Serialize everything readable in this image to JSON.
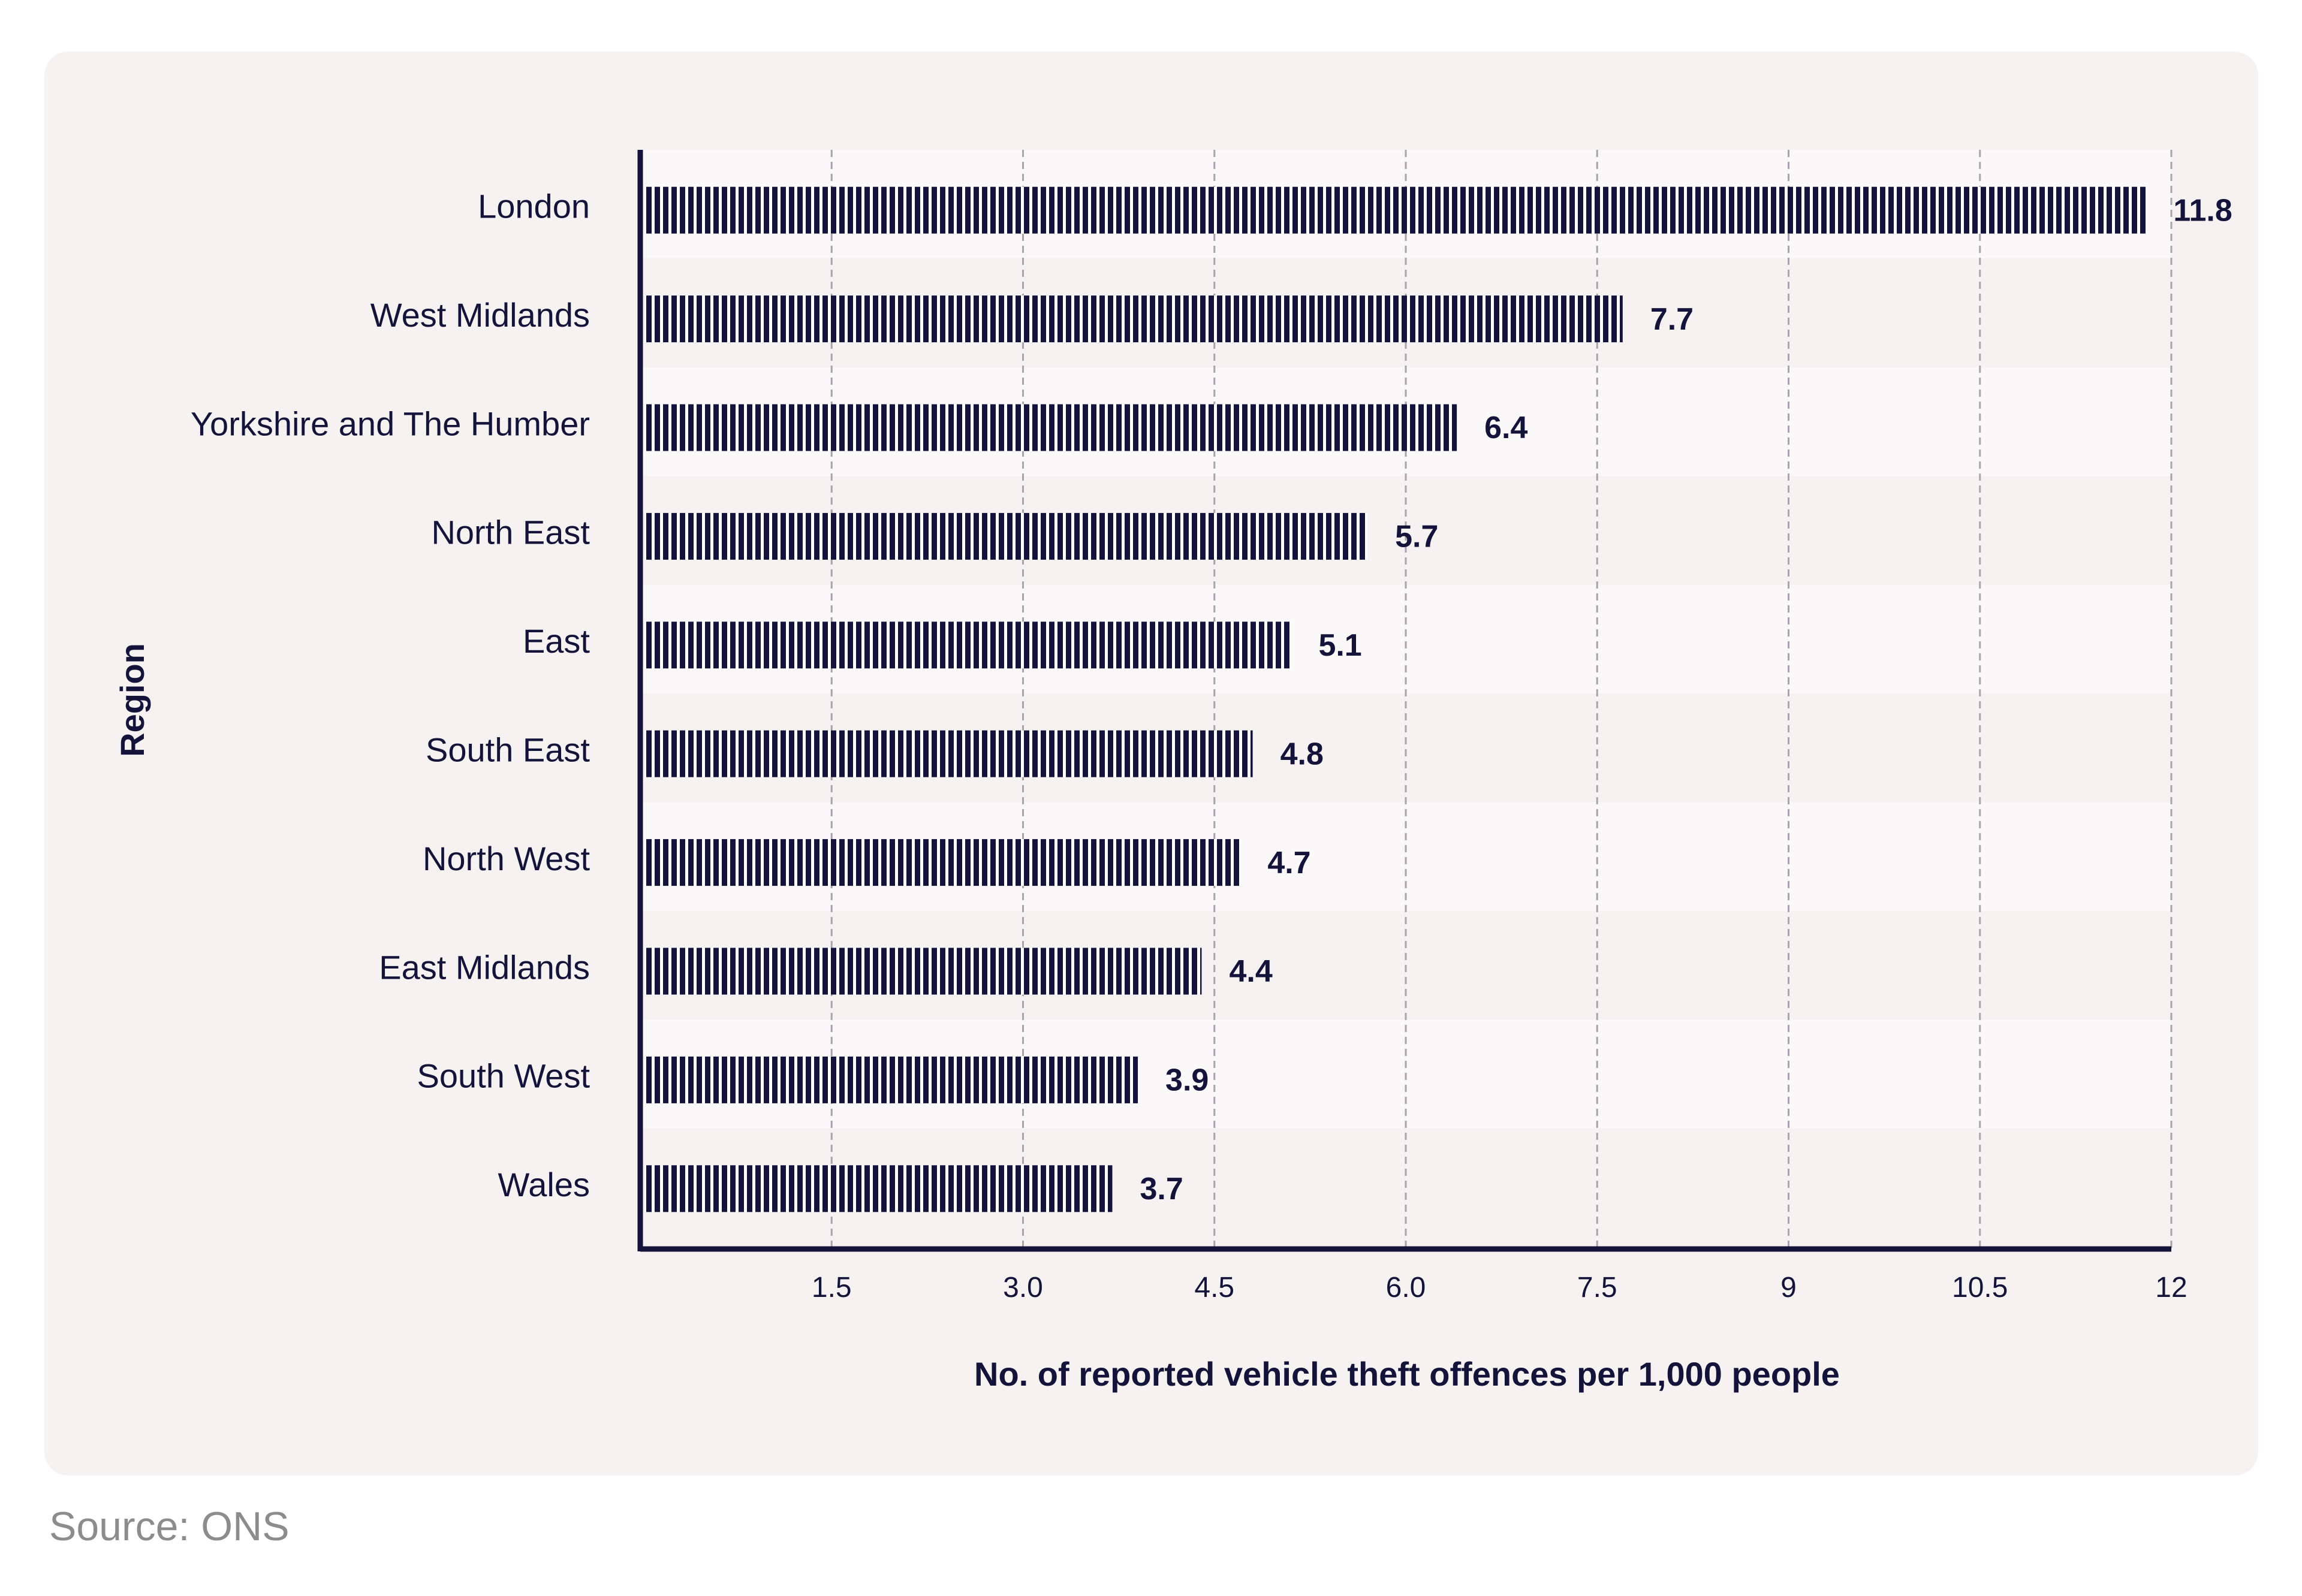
{
  "colors": {
    "card_bg": "#f5f2f1",
    "band_light": "#faf8f8",
    "band_dark": "#f5f2f1",
    "bar": "#14143a",
    "bar_gap": "#ffffff",
    "grid": "#a8a4ad",
    "text": "#14143a",
    "source_text": "#8c8c8c"
  },
  "chart_data": {
    "type": "bar",
    "orientation": "horizontal",
    "title": "",
    "xlabel": "No. of reported vehicle theft offences per 1,000 people",
    "ylabel": "Region",
    "xlim": [
      0,
      12
    ],
    "grid": true,
    "x_ticks": [
      {
        "value": 1.5,
        "label": "1.5"
      },
      {
        "value": 3.0,
        "label": "3.0"
      },
      {
        "value": 4.5,
        "label": "4.5"
      },
      {
        "value": 6.0,
        "label": "6.0"
      },
      {
        "value": 7.5,
        "label": "7.5"
      },
      {
        "value": 9,
        "label": "9"
      },
      {
        "value": 10.5,
        "label": "10.5"
      },
      {
        "value": 12,
        "label": "12"
      }
    ],
    "categories": [
      "London",
      "West Midlands",
      "Yorkshire and The Humber",
      "North East",
      "East",
      "South East",
      "North West",
      "East Midlands",
      "South West",
      "Wales"
    ],
    "values": [
      11.8,
      7.7,
      6.4,
      5.7,
      5.1,
      4.8,
      4.7,
      4.4,
      3.9,
      3.7
    ],
    "value_labels": [
      "11.8",
      "7.7",
      "6.4",
      "5.7",
      "5.1",
      "4.8",
      "4.7",
      "4.4",
      "3.9",
      "3.7"
    ]
  },
  "source": "Source: ONS"
}
